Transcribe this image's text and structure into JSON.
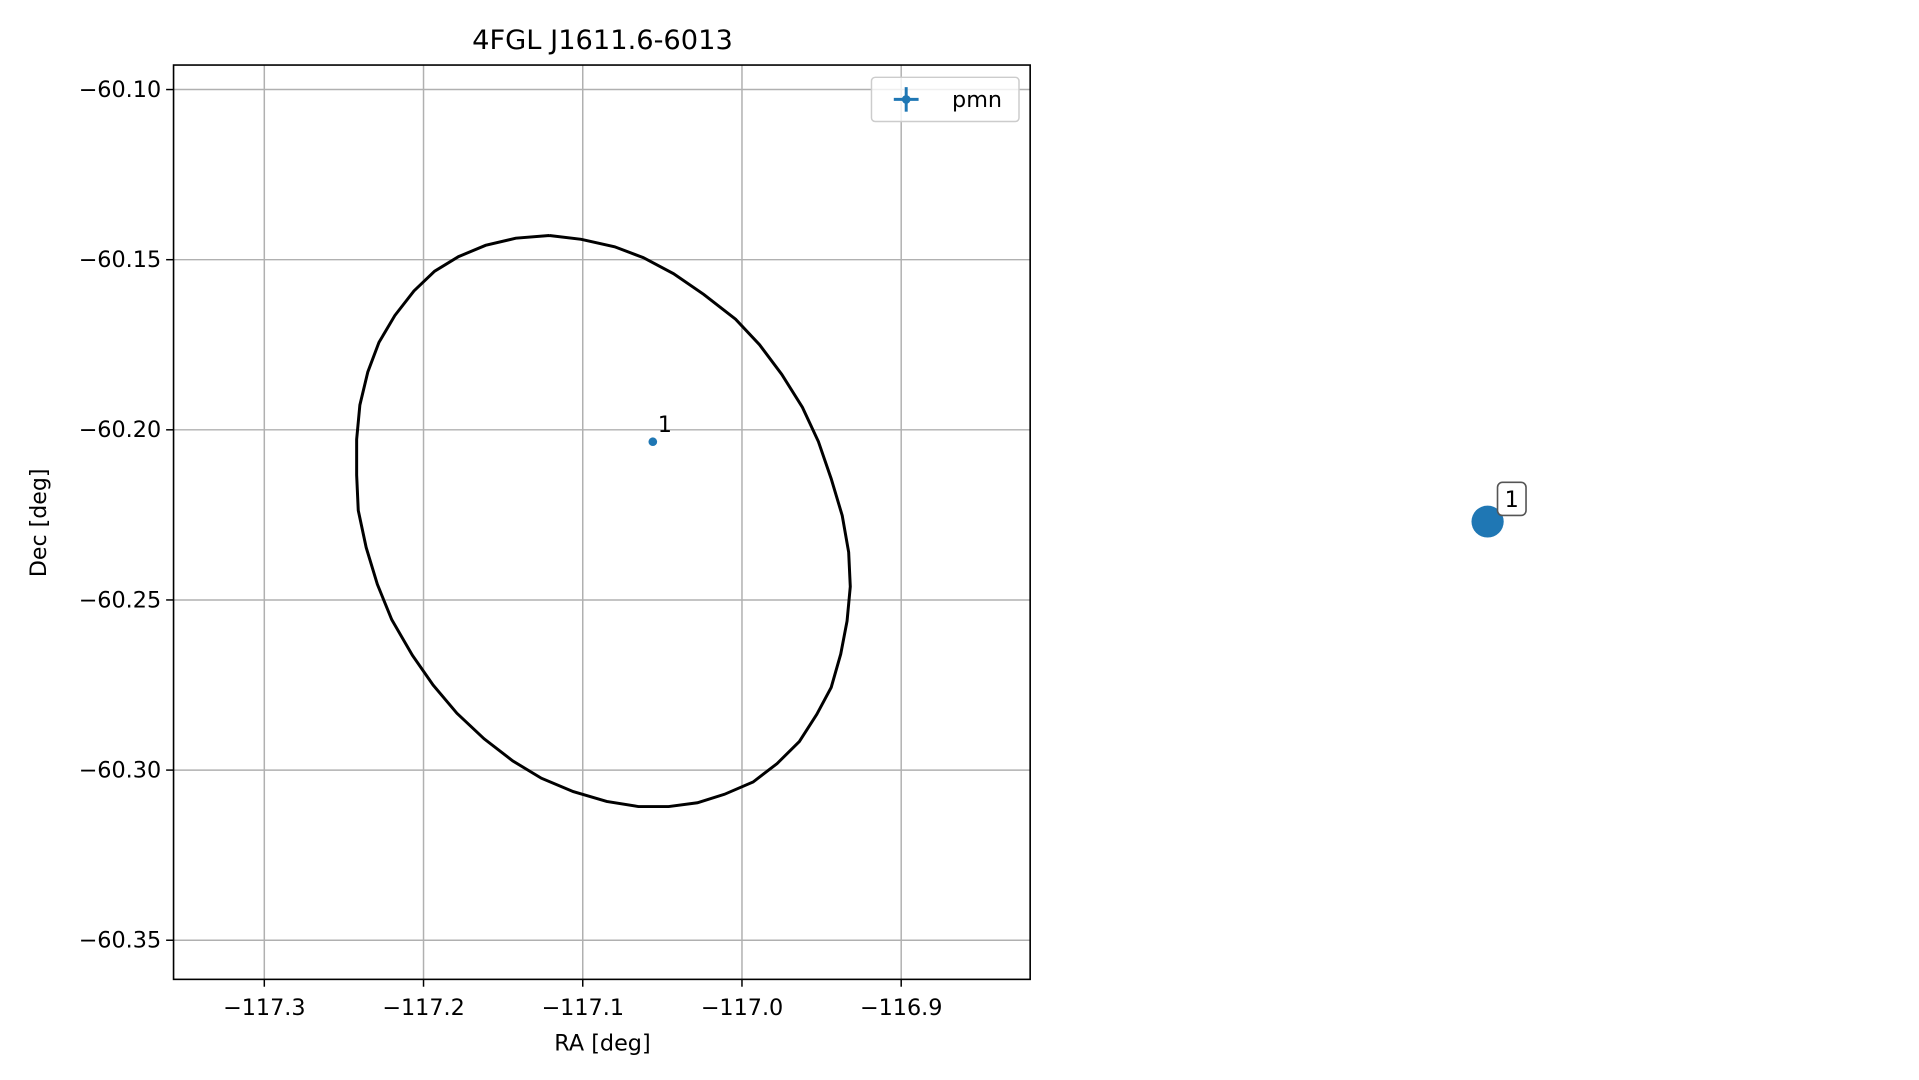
{
  "chart_data": {
    "type": "scatter",
    "title": "4FGL J1611.6-6013",
    "xlabel": "RA [deg]",
    "ylabel": "Dec [deg]",
    "xlim": [
      -117.357,
      -116.819
    ],
    "ylim": [
      -60.3615,
      -60.0928
    ],
    "xticks": [
      {
        "value": -117.3,
        "label": "−117.3"
      },
      {
        "value": -117.2,
        "label": "−117.2"
      },
      {
        "value": -117.1,
        "label": "−117.1"
      },
      {
        "value": -117.0,
        "label": "−117.0"
      },
      {
        "value": -116.9,
        "label": "−116.9"
      }
    ],
    "yticks": [
      {
        "value": -60.1,
        "label": "−60.10"
      },
      {
        "value": -60.15,
        "label": "−60.15"
      },
      {
        "value": -60.2,
        "label": "−60.20"
      },
      {
        "value": -60.25,
        "label": "−60.25"
      },
      {
        "value": -60.3,
        "label": "−60.30"
      },
      {
        "value": -60.35,
        "label": "−60.35"
      }
    ],
    "grid": true,
    "legend": "upper right",
    "series": [
      {
        "name": "pmn",
        "color": "#1f77b4",
        "x": [
          -117.056
        ],
        "y": [
          -60.2035
        ],
        "labels": [
          "1"
        ]
      }
    ],
    "ellipse": {
      "color": "#000000",
      "x": [
        -117.121,
        -117.101,
        -117.08,
        -117.062,
        -117.043,
        -117.024,
        -117.004,
        -116.989,
        -116.975,
        -116.962,
        -116.952,
        -116.944,
        -116.937,
        -116.933,
        -116.932,
        -116.934,
        -116.938,
        -116.944,
        -116.953,
        -116.964,
        -116.978,
        -116.993,
        -117.011,
        -117.028,
        -117.046,
        -117.065,
        -117.085,
        -117.106,
        -117.126,
        -117.144,
        -117.162,
        -117.179,
        -117.194,
        -117.207,
        -117.22,
        -117.229,
        -117.236,
        -117.241,
        -117.242,
        -117.242,
        -117.24,
        -117.235,
        -117.228,
        -117.218,
        -117.206,
        -117.193,
        -117.178,
        -117.161,
        -117.142,
        -117.121
      ],
      "y": [
        -60.1429,
        -60.144,
        -60.1462,
        -60.1494,
        -60.1541,
        -60.1602,
        -60.1675,
        -60.175,
        -60.1837,
        -60.1934,
        -60.2035,
        -60.2144,
        -60.2252,
        -60.236,
        -60.2461,
        -60.2562,
        -60.2659,
        -60.2757,
        -60.2836,
        -60.2916,
        -60.2981,
        -60.3035,
        -60.3071,
        -60.3096,
        -60.3107,
        -60.3107,
        -60.3092,
        -60.3063,
        -60.3024,
        -60.2973,
        -60.2908,
        -60.2833,
        -60.275,
        -60.2663,
        -60.2558,
        -60.2454,
        -60.2346,
        -60.2237,
        -60.2133,
        -60.2028,
        -60.1927,
        -60.183,
        -60.1743,
        -60.1664,
        -60.1592,
        -60.1534,
        -60.1491,
        -60.1458,
        -60.1437,
        -60.1429
      ]
    },
    "highlight": {
      "label": "1",
      "color": "#1f77b4"
    }
  }
}
